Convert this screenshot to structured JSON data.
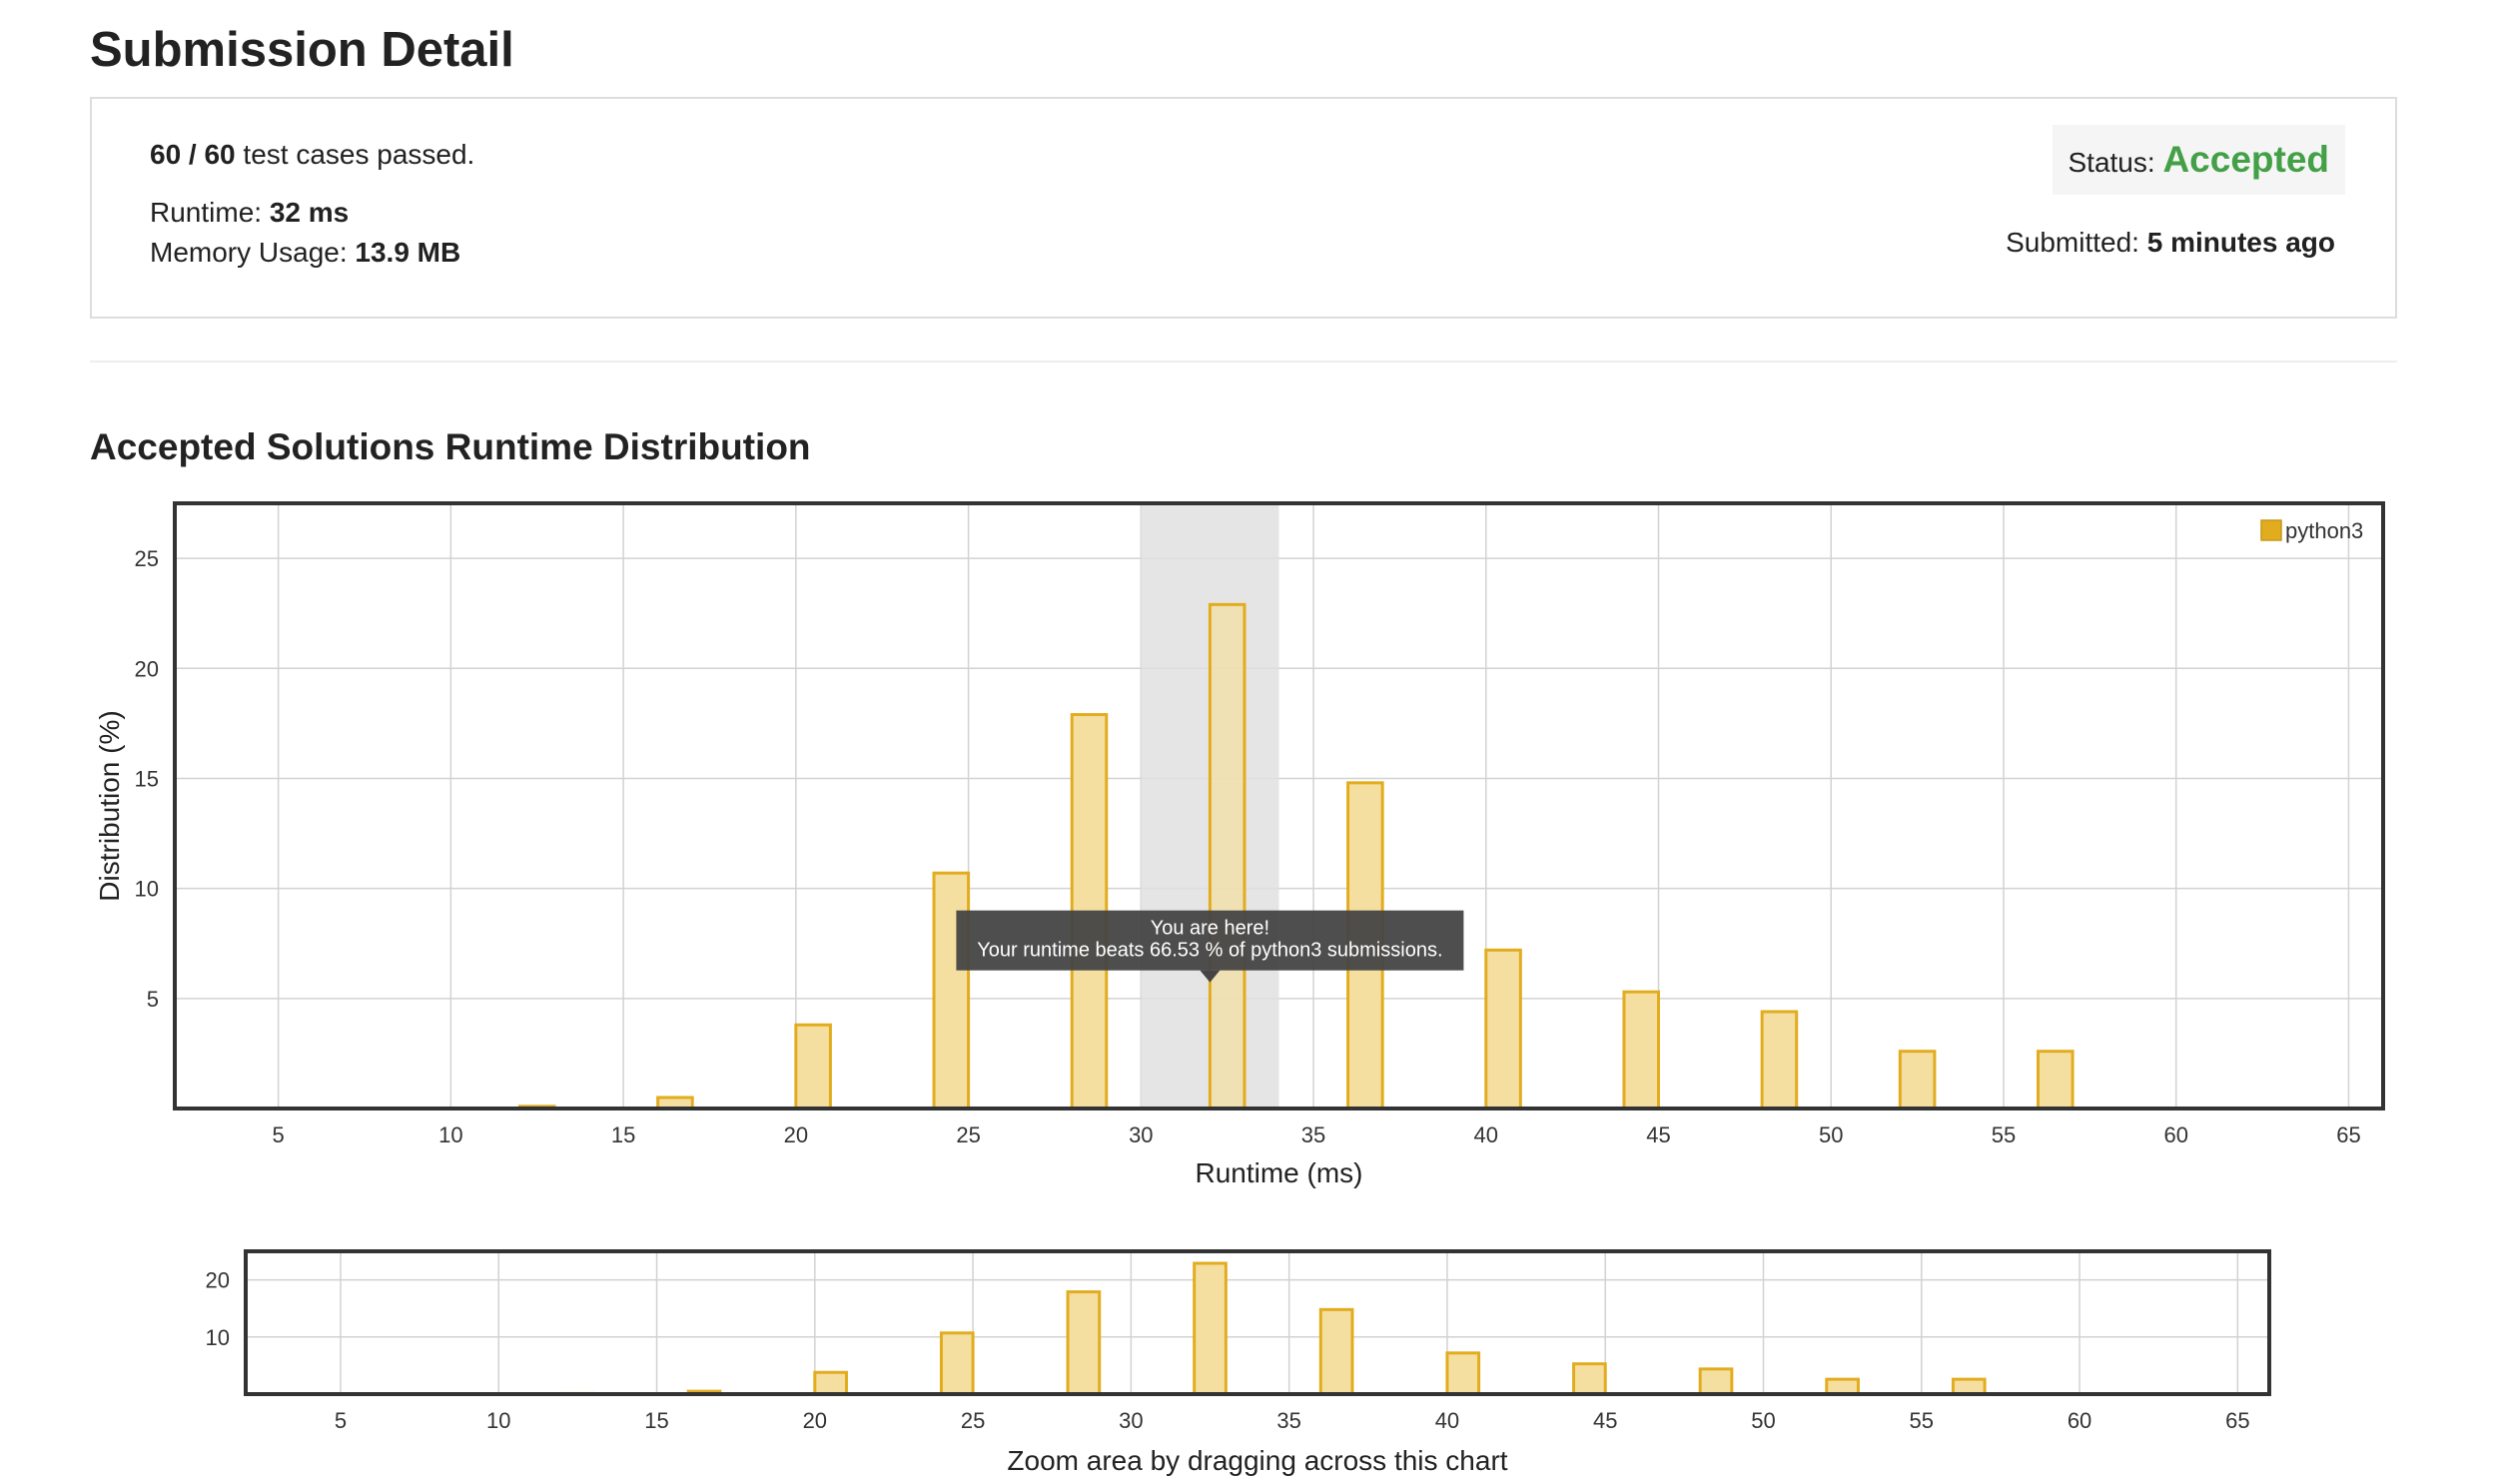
{
  "header": {
    "title": "Submission Detail"
  },
  "summary": {
    "cases_passed": "60 / 60",
    "cases_suffix": " test cases passed.",
    "runtime_label": "Runtime: ",
    "runtime_value": "32 ms",
    "memory_label": "Memory Usage: ",
    "memory_value": "13.9 MB",
    "status_label": "Status: ",
    "status_value": "Accepted",
    "submitted_label": "Submitted: ",
    "submitted_value": "5 minutes ago"
  },
  "colors": {
    "accent_green": "#43a047",
    "bar_fill": "#f5dfa0",
    "bar_stroke": "#e2ac1f",
    "highlight_band": "#e0e0e0",
    "tooltip_bg": "#444444"
  },
  "section_title": "Accepted Solutions Runtime Distribution",
  "chart_data": [
    {
      "type": "bar",
      "title": "",
      "xlabel": "Runtime (ms)",
      "ylabel": "Distribution (%)",
      "xlim": [
        2,
        66
      ],
      "ylim": [
        0,
        27.5
      ],
      "xticks": [
        5,
        10,
        15,
        20,
        25,
        30,
        35,
        40,
        45,
        50,
        55,
        60,
        65
      ],
      "yticks": [
        5,
        10,
        15,
        20,
        25
      ],
      "bar_width": 1.0,
      "grid": true,
      "legend": "top-right",
      "series": [
        {
          "name": "python3",
          "x": [
            12.5,
            16.5,
            20.5,
            24.5,
            28.5,
            32.5,
            36.5,
            40.5,
            44.5,
            48.5,
            52.5,
            56.5
          ],
          "values": [
            0.1,
            0.5,
            3.8,
            10.7,
            17.9,
            22.9,
            14.8,
            7.2,
            5.3,
            4.4,
            2.6,
            2.6
          ]
        }
      ],
      "highlight": {
        "x_from": 30,
        "x_to": 34
      },
      "tooltip": {
        "line1": "You are here!",
        "line2": "Your runtime beats 66.53 % of python3 submissions."
      }
    },
    {
      "type": "bar",
      "title": "",
      "xlabel": "Zoom area by dragging across this chart",
      "ylabel": "",
      "xlim": [
        2,
        66
      ],
      "ylim": [
        0,
        25
      ],
      "xticks": [
        5,
        10,
        15,
        20,
        25,
        30,
        35,
        40,
        45,
        50,
        55,
        60,
        65
      ],
      "yticks": [
        10,
        20
      ],
      "bar_width": 1.0,
      "grid": true,
      "series": [
        {
          "name": "python3",
          "x": [
            12.5,
            16.5,
            20.5,
            24.5,
            28.5,
            32.5,
            36.5,
            40.5,
            44.5,
            48.5,
            52.5,
            56.5
          ],
          "values": [
            0.1,
            0.5,
            3.8,
            10.7,
            17.9,
            22.9,
            14.8,
            7.2,
            5.3,
            4.4,
            2.6,
            2.6
          ]
        }
      ]
    }
  ]
}
